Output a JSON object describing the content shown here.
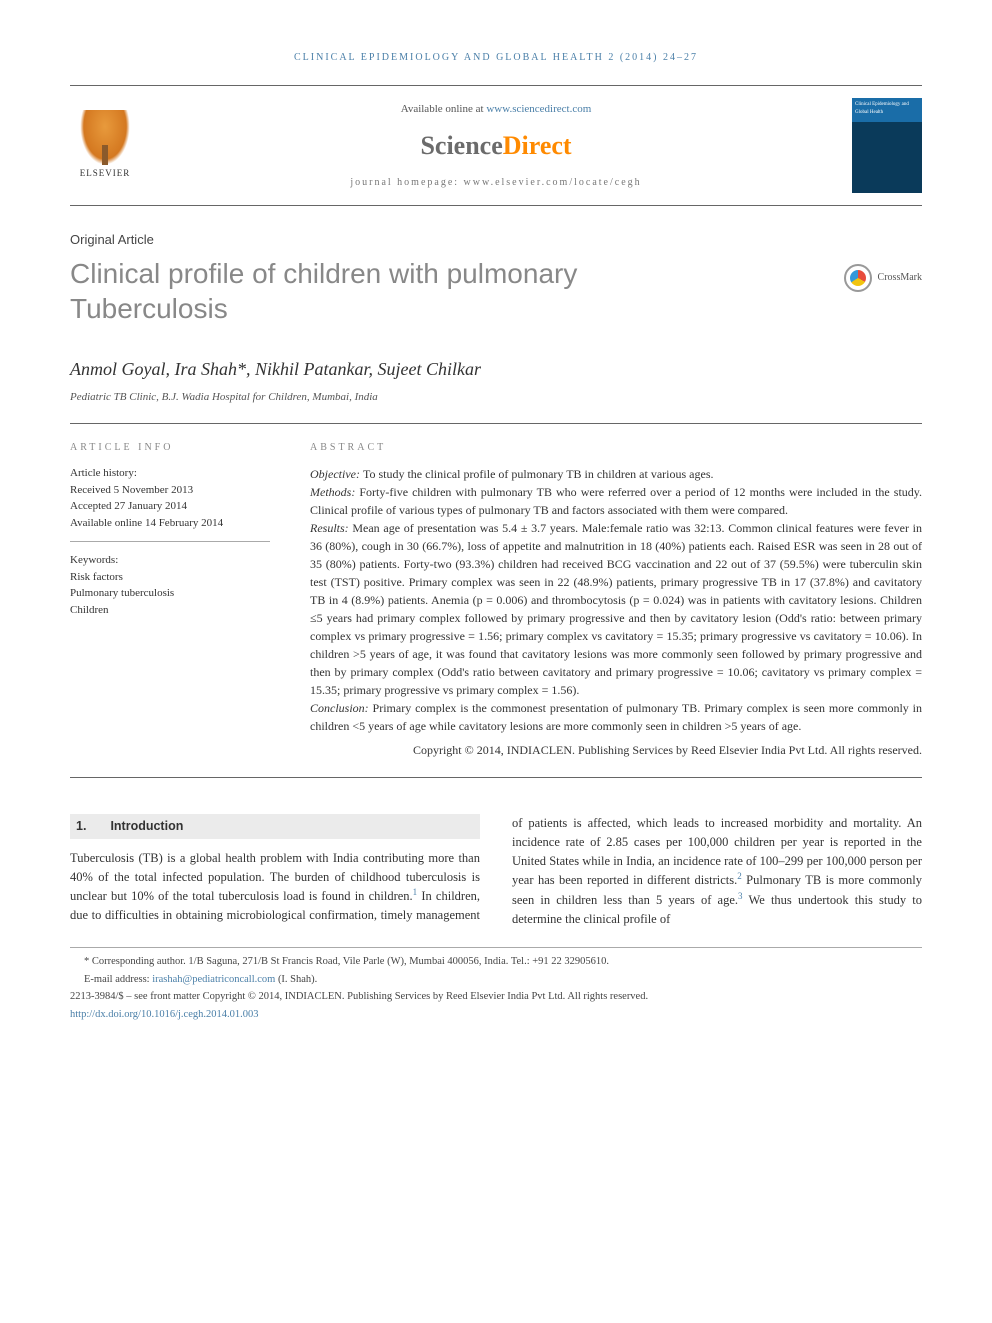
{
  "running_head": "CLINICAL EPIDEMIOLOGY AND GLOBAL HEALTH 2 (2014) 24–27",
  "masthead": {
    "publisher_name": "ELSEVIER",
    "available_prefix": "Available online at ",
    "available_link": "www.sciencedirect.com",
    "sd_part1": "Science",
    "sd_part2": "Direct",
    "homepage_label": "journal homepage: ",
    "homepage_url": "www.elsevier.com/locate/cegh",
    "cover_title": "Clinical Epidemiology and Global Health"
  },
  "article_type": "Original Article",
  "title": "Clinical profile of children with pulmonary Tuberculosis",
  "crossmark_label": "CrossMark",
  "authors": "Anmol Goyal, Ira Shah*, Nikhil Patankar, Sujeet Chilkar",
  "affiliation": "Pediatric TB Clinic, B.J. Wadia Hospital for Children, Mumbai, India",
  "info": {
    "head": "ARTICLE INFO",
    "history_label": "Article history:",
    "received": "Received 5 November 2013",
    "accepted": "Accepted 27 January 2014",
    "online": "Available online 14 February 2014",
    "keywords_label": "Keywords:",
    "kw1": "Risk factors",
    "kw2": "Pulmonary tuberculosis",
    "kw3": "Children"
  },
  "abstract": {
    "head": "ABSTRACT",
    "objective_label": "Objective: ",
    "objective": "To study the clinical profile of pulmonary TB in children at various ages.",
    "methods_label": "Methods: ",
    "methods": "Forty-five children with pulmonary TB who were referred over a period of 12 months were included in the study. Clinical profile of various types of pulmonary TB and factors associated with them were compared.",
    "results_label": "Results: ",
    "results": "Mean age of presentation was 5.4 ± 3.7 years. Male:female ratio was 32:13. Common clinical features were fever in 36 (80%), cough in 30 (66.7%), loss of appetite and malnutrition in 18 (40%) patients each. Raised ESR was seen in 28 out of 35 (80%) patients. Forty-two (93.3%) children had received BCG vaccination and 22 out of 37 (59.5%) were tuberculin skin test (TST) positive. Primary complex was seen in 22 (48.9%) patients, primary progressive TB in 17 (37.8%) and cavitatory TB in 4 (8.9%) patients. Anemia (p = 0.006) and thrombocytosis (p = 0.024) was in patients with cavitatory lesions. Children ≤5 years had primary complex followed by primary progressive and then by cavitatory lesion (Odd's ratio: between primary complex vs primary progressive = 1.56; primary complex vs cavitatory = 15.35; primary progressive vs cavitatory = 10.06). In children >5 years of age, it was found that cavitatory lesions was more commonly seen followed by primary progressive and then by primary complex (Odd's ratio between cavitatory and primary progressive = 10.06; cavitatory vs primary complex = 15.35; primary progressive vs primary complex = 1.56).",
    "conclusion_label": "Conclusion: ",
    "conclusion": "Primary complex is the commonest presentation of pulmonary TB. Primary complex is seen more commonly in children <5 years of age while cavitatory lesions are more commonly seen in children >5 years of age.",
    "copyright": "Copyright © 2014, INDIACLEN. Publishing Services by Reed Elsevier India Pvt Ltd. All rights reserved."
  },
  "section1": {
    "num": "1.",
    "title": "Introduction",
    "p1a": "Tuberculosis (TB) is a global health problem with India contributing more than 40% of the total infected population. The burden of childhood tuberculosis is unclear but 10% of the total tuberculosis load is found in children.",
    "ref1": "1",
    "p1b": " In children, due to difficulties in obtaining microbiological confirmation, timely",
    "p2a": "management of patients is affected, which leads to increased morbidity and mortality. An incidence rate of 2.85 cases per 100,000 children per year is reported in the United States while in India, an incidence rate of 100–299 per 100,000 person per year has been reported in different districts.",
    "ref2": "2",
    "p2b": " Pulmonary TB is more commonly seen in children less than 5 years of age.",
    "ref3": "3",
    "p2c": " We thus undertook this study to determine the clinical profile of"
  },
  "footnotes": {
    "corr": "* Corresponding author. 1/B Saguna, 271/B St Francis Road, Vile Parle (W), Mumbai 400056, India. Tel.: +91 22 32905610.",
    "email_label": "E-mail address: ",
    "email": "irashah@pediatriconcall.com",
    "email_who": " (I. Shah).",
    "issn": "2213-3984/$ – see front matter Copyright © 2014, INDIACLEN. Publishing Services by Reed Elsevier India Pvt Ltd. All rights reserved.",
    "doi": "http://dx.doi.org/10.1016/j.cegh.2014.01.003"
  },
  "colors": {
    "link": "#4a7fa8",
    "title_gray": "#888888",
    "orange": "#ff8a00",
    "rule": "#666666"
  }
}
